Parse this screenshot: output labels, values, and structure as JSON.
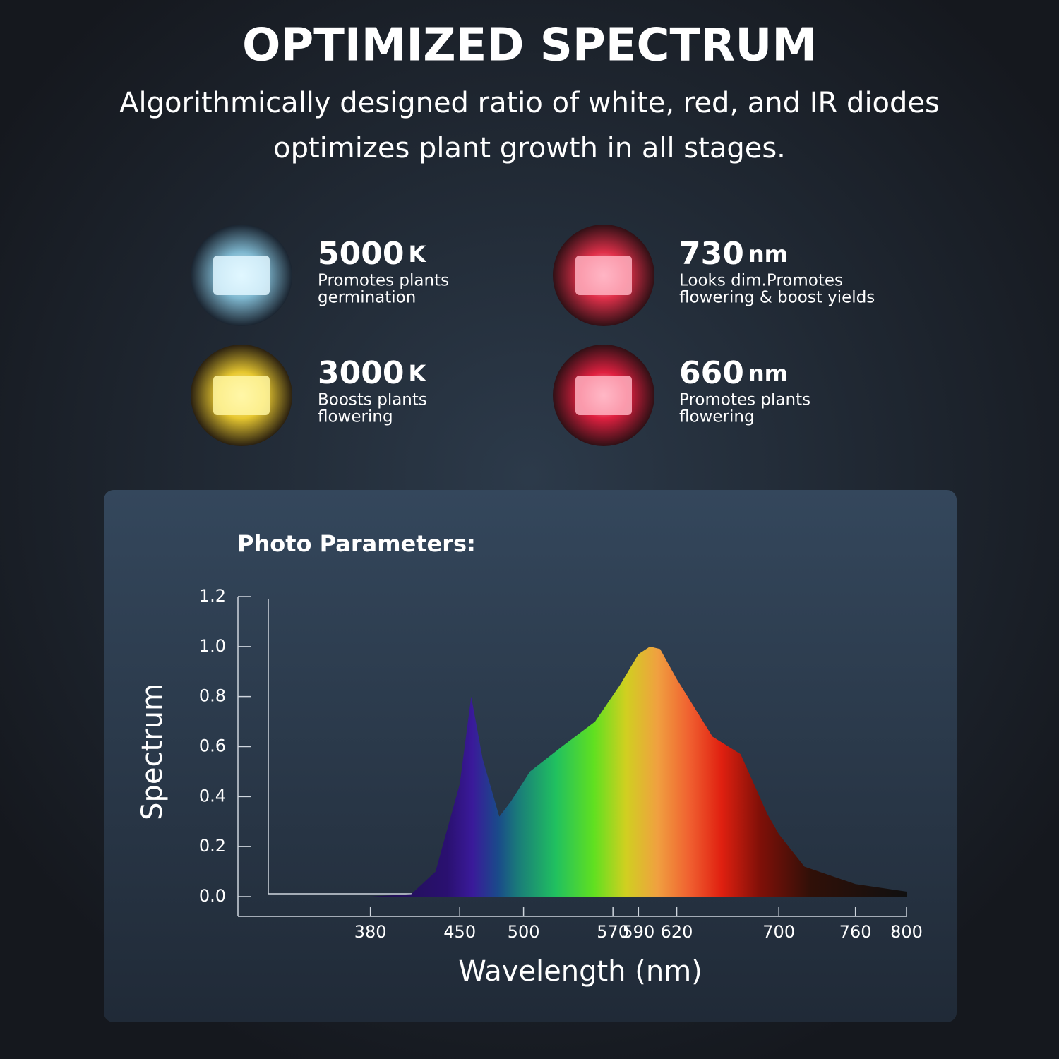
{
  "header": {
    "title": "OPTIMIZED SPECTRUM",
    "subtitle": [
      "Algorithmically designed ratio of white, red, and IR diodes",
      "optimizes plant growth in all stages."
    ]
  },
  "features": [
    {
      "value": "5000",
      "unit": "K",
      "description": [
        "Promotes plants",
        "germination"
      ]
    },
    {
      "value": "730",
      "unit": "nm",
      "description": [
        "Looks dim.Promotes",
        "flowering & boost yields"
      ]
    },
    {
      "value": "3000",
      "unit": "K",
      "description": [
        "Boosts plants",
        "flowering"
      ]
    },
    {
      "value": "660",
      "unit": "nm",
      "description": [
        "Promotes plants",
        "flowering"
      ]
    }
  ],
  "chart_data": {
    "type": "area",
    "title": "Photo Parameters:",
    "ylabel": "Spectrum",
    "xlabel": "Wavelength (nm)",
    "x": [
      380,
      412,
      431,
      450,
      459,
      468,
      481,
      490,
      505,
      530,
      556,
      576,
      590,
      599,
      607,
      620,
      648,
      670,
      691,
      700,
      720,
      760,
      800
    ],
    "values": [
      0,
      0.01,
      0.1,
      0.45,
      0.8,
      0.55,
      0.32,
      0.38,
      0.5,
      0.6,
      0.7,
      0.85,
      0.97,
      1.0,
      0.99,
      0.87,
      0.64,
      0.57,
      0.33,
      0.25,
      0.12,
      0.05,
      0.02
    ],
    "xlim": [
      300,
      800
    ],
    "xticks": [
      380,
      450,
      500,
      570,
      590,
      620,
      700,
      760,
      800
    ],
    "ylim": [
      0,
      1.2
    ],
    "yticks": [
      {
        "value": 0,
        "label": "0.0"
      },
      0.2,
      0.4,
      0.6,
      0.8,
      {
        "value": 1,
        "label": "1.0"
      },
      1.2
    ]
  }
}
